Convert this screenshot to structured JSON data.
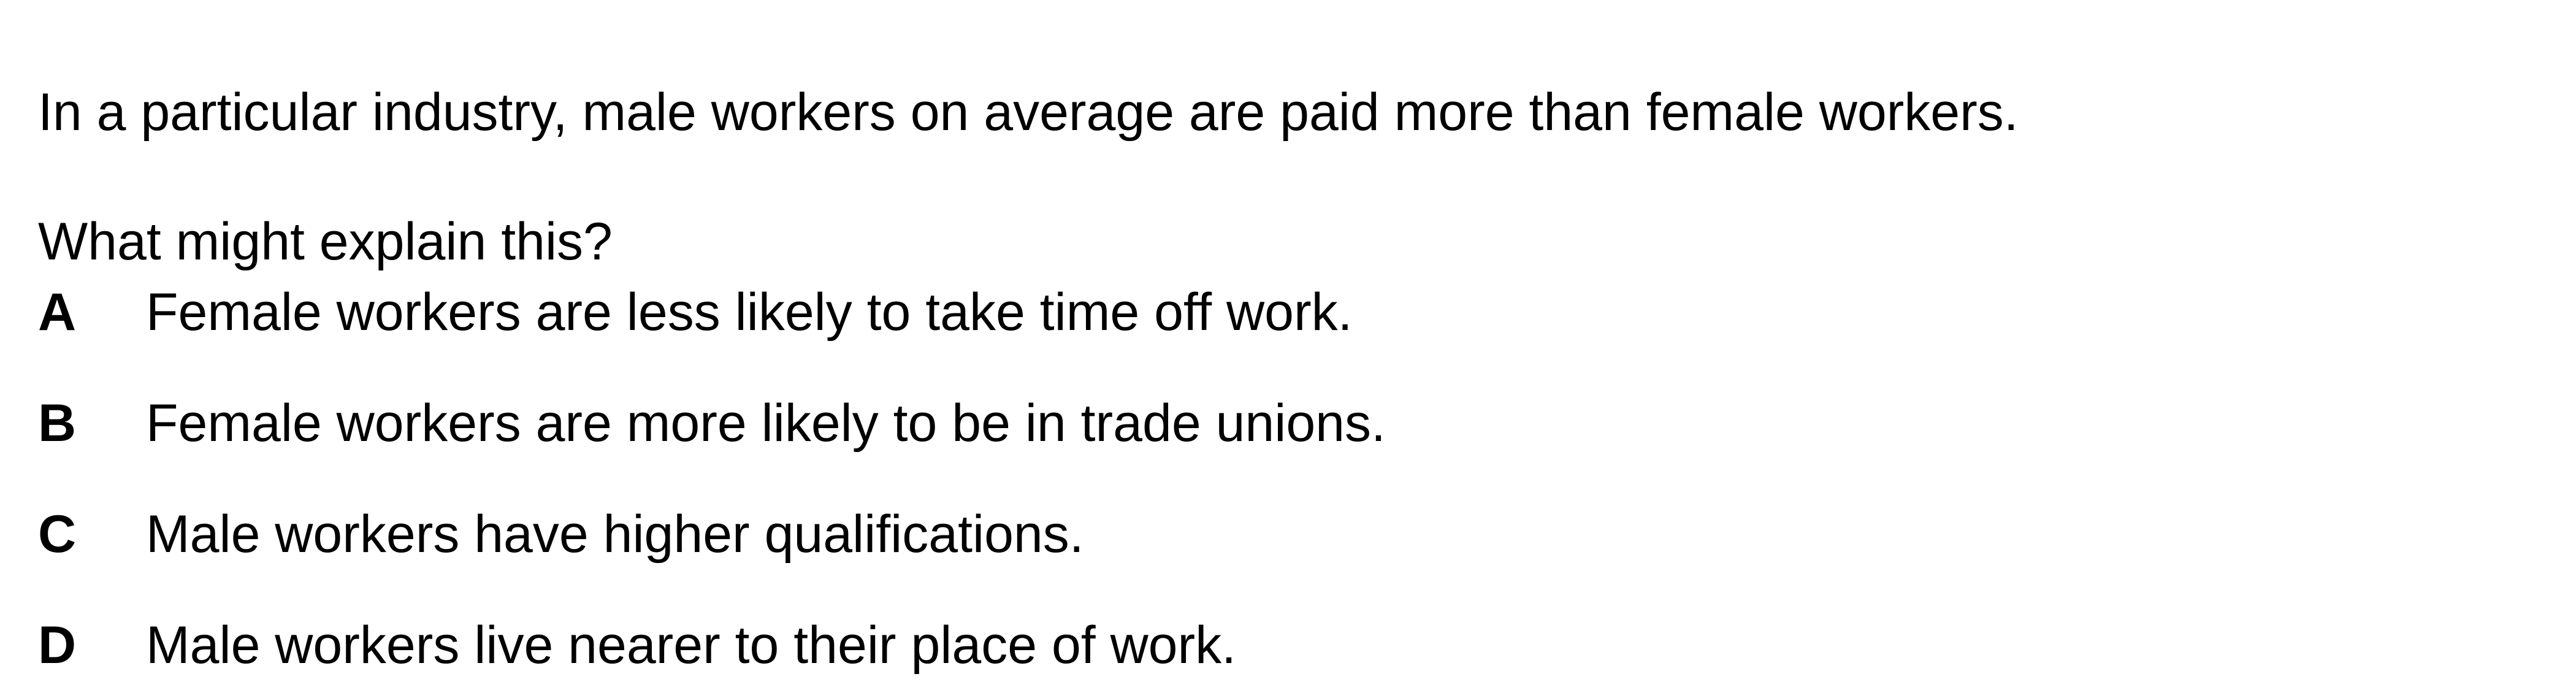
{
  "question": {
    "stem": "In a particular industry, male workers on average are paid more than female workers.",
    "prompt": "What might explain this?",
    "options": [
      {
        "letter": "A",
        "text": "Female workers are less likely to take time off work."
      },
      {
        "letter": "B",
        "text": "Female workers are more likely to be in trade unions."
      },
      {
        "letter": "C",
        "text": "Male workers have higher qualifications."
      },
      {
        "letter": "D",
        "text": "Male workers live nearer to their place of work."
      }
    ]
  }
}
